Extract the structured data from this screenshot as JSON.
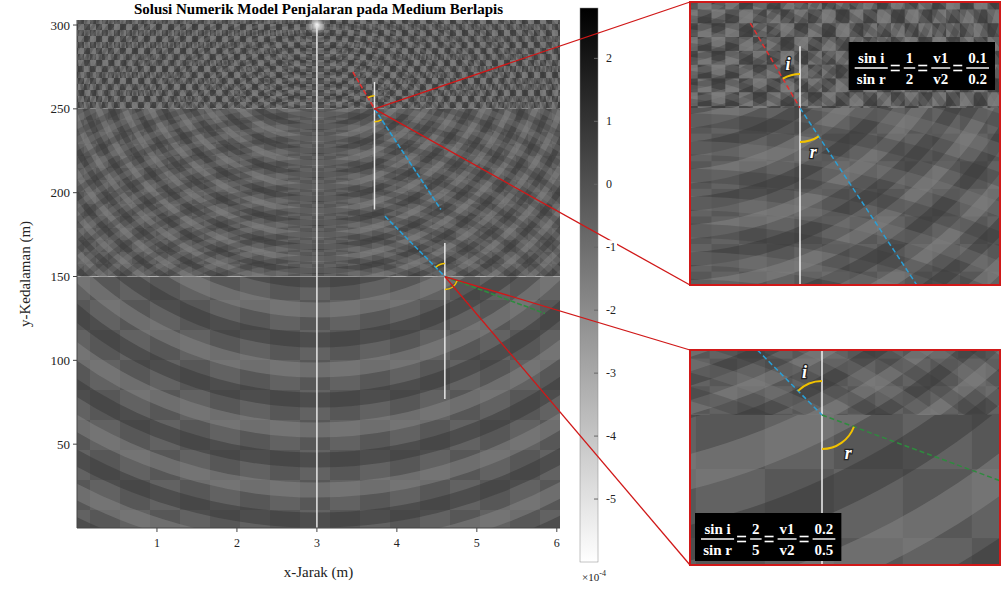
{
  "chart_data": {
    "type": "heatmap",
    "title": "Solusi Numerik Model Penjalaran pada Medium Berlapis",
    "x_label": "x-Jarak (m)",
    "y_label": "y-Kedalaman (m)",
    "xlim": [
      0,
      6.04
    ],
    "ylim": [
      0,
      303
    ],
    "xticks": [
      1,
      2,
      3,
      4,
      5,
      6
    ],
    "yticks": [
      50,
      100,
      150,
      200,
      250,
      300
    ],
    "colorbar": {
      "range": [
        -6,
        2.8
      ],
      "ticks": [
        2,
        1,
        0,
        -1,
        -2,
        -3,
        -4,
        -5
      ],
      "multiplier": "×10",
      "exponent": "-4"
    },
    "source": {
      "x": 3,
      "y": 300
    },
    "layers": [
      {
        "top": 303,
        "bottom": 250,
        "velocity": 0.1
      },
      {
        "top": 250,
        "bottom": 150,
        "velocity": 0.2
      },
      {
        "top": 150,
        "bottom": 0,
        "velocity": 0.5
      }
    ],
    "rays": [
      {
        "color": "#e03030",
        "x": [
          3.45,
          3.72
        ],
        "y": [
          272,
          250
        ]
      },
      {
        "color": "#2a9fd6",
        "x": [
          3.72,
          4.55
        ],
        "y": [
          250,
          190
        ]
      },
      {
        "color": "#2a9fd6",
        "x": [
          3.85,
          4.6
        ],
        "y": [
          186,
          150
        ]
      },
      {
        "color": "#2e8b3e",
        "x": [
          4.6,
          5.85
        ],
        "y": [
          150,
          128
        ]
      }
    ],
    "normals": [
      {
        "x": [
          3.72,
          3.72
        ],
        "y": [
          266,
          190
        ]
      },
      {
        "x": [
          4.6,
          4.6
        ],
        "y": [
          170,
          77
        ]
      }
    ],
    "insets": [
      {
        "x": 3.72,
        "y": 250,
        "angle_labels": [
          "i",
          "r"
        ],
        "formula": [
          [
            "sin i",
            "sin r"
          ],
          [
            "1",
            "2"
          ],
          [
            "v1",
            "v2"
          ],
          [
            "0.1",
            "0.2"
          ]
        ]
      },
      {
        "x": 4.6,
        "y": 150,
        "angle_labels": [
          "i",
          "r"
        ],
        "formula": [
          [
            "sin i",
            "sin r"
          ],
          [
            "2",
            "5"
          ],
          [
            "v1",
            "v2"
          ],
          [
            "0.2",
            "0.5"
          ]
        ]
      }
    ]
  }
}
